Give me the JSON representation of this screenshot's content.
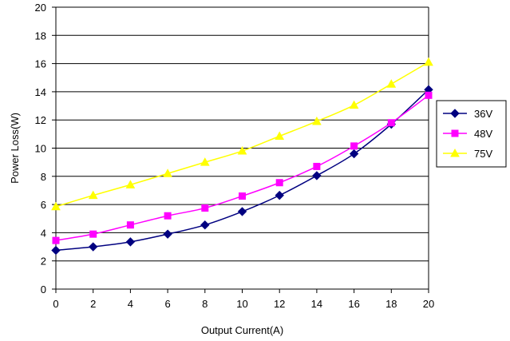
{
  "chart_data": {
    "type": "line",
    "title": "",
    "xlabel": "Output Current(A)",
    "ylabel": "Power Loss(W)",
    "xlim": [
      0,
      20
    ],
    "ylim": [
      0,
      20
    ],
    "xticks": [
      0,
      2,
      4,
      6,
      8,
      10,
      12,
      14,
      16,
      18,
      20
    ],
    "yticks": [
      0,
      2,
      4,
      6,
      8,
      10,
      12,
      14,
      16,
      18,
      20
    ],
    "grid": "horizontal",
    "legend_position": "right",
    "x": [
      0,
      2,
      4,
      6,
      8,
      10,
      12,
      14,
      16,
      18,
      20
    ],
    "series": [
      {
        "name": "36V",
        "color": "#000080",
        "marker": "diamond",
        "values": [
          2.75,
          3.0,
          3.35,
          3.9,
          4.55,
          5.5,
          6.65,
          8.05,
          9.6,
          11.7,
          14.15
        ]
      },
      {
        "name": "48V",
        "color": "#FF00FF",
        "marker": "square",
        "values": [
          3.45,
          3.9,
          4.55,
          5.2,
          5.75,
          6.6,
          7.55,
          8.7,
          10.15,
          11.8,
          13.75
        ]
      },
      {
        "name": "75V",
        "color": "#FFFF00",
        "marker": "triangle",
        "values": [
          5.85,
          6.65,
          7.4,
          8.2,
          9.0,
          9.8,
          10.85,
          11.9,
          13.05,
          14.55,
          16.1
        ]
      }
    ]
  }
}
